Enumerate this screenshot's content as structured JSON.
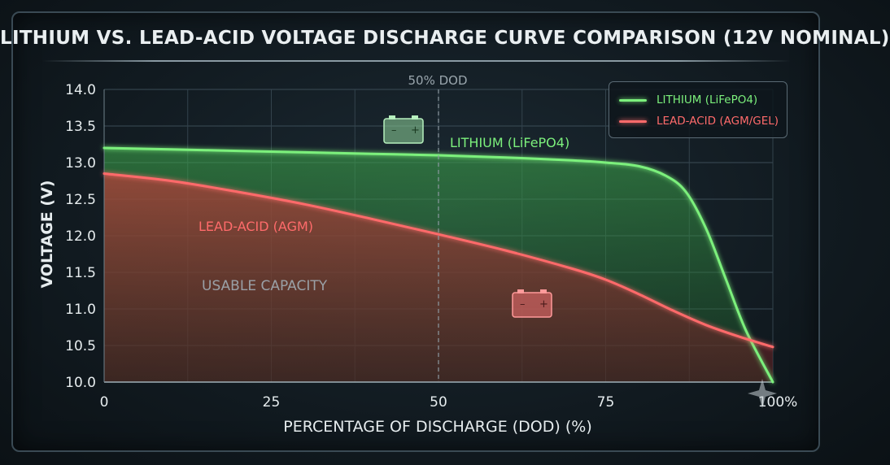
{
  "title": "LITHIUM VS. LEAD-ACID VOLTAGE DISCHARGE CURVE COMPARISON (12V NOMINAL)",
  "colors": {
    "lithium": "#7cf07c",
    "lead_acid": "#ff6b6b",
    "background": "#141f26"
  },
  "legend": {
    "lithium": "LITHIUM (LiFePO4)",
    "lead_acid": "LEAD-ACID (AGM/GEL)"
  },
  "annotations": {
    "dod_line": "50% DOD",
    "lithium_label": "LITHIUM (LiFePO4)",
    "lead_label": "LEAD-ACID (AGM)",
    "usable": "USABLE CAPACITY"
  },
  "icons": [
    "battery-icon",
    "battery-icon",
    "star-icon"
  ],
  "chart_data": {
    "type": "line",
    "title": "LITHIUM VS. LEAD-ACID VOLTAGE DISCHARGE CURVE COMPARISON (12V NOMINAL)",
    "xlabel": "PERCENTAGE OF DISCHARGE (DOD) (%)",
    "ylabel": "VOLTAGE (V)",
    "xlim": [
      0,
      100
    ],
    "ylim": [
      10.0,
      14.0
    ],
    "x_ticks": [
      "0",
      "25",
      "50",
      "75",
      "100%"
    ],
    "y_ticks": [
      "10.0",
      "10.5",
      "11.0",
      "11.5",
      "12.0",
      "12.5",
      "13.0",
      "13.5",
      "14.0"
    ],
    "grid": true,
    "legend_position": "top-right",
    "series": [
      {
        "name": "LITHIUM (LiFePO4)",
        "x": [
          0,
          10,
          20,
          30,
          40,
          50,
          60,
          70,
          75,
          80,
          84,
          87,
          90,
          93,
          96,
          100
        ],
        "y": [
          13.2,
          13.18,
          13.16,
          13.14,
          13.12,
          13.1,
          13.07,
          13.03,
          13.0,
          12.95,
          12.82,
          12.6,
          12.1,
          11.4,
          10.7,
          10.0
        ]
      },
      {
        "name": "LEAD-ACID (AGM/GEL)",
        "x": [
          0,
          10,
          20,
          30,
          40,
          50,
          60,
          70,
          75,
          80,
          85,
          90,
          95,
          100
        ],
        "y": [
          12.85,
          12.75,
          12.6,
          12.43,
          12.23,
          12.02,
          11.8,
          11.55,
          11.4,
          11.2,
          10.98,
          10.78,
          10.62,
          10.48
        ]
      }
    ]
  }
}
